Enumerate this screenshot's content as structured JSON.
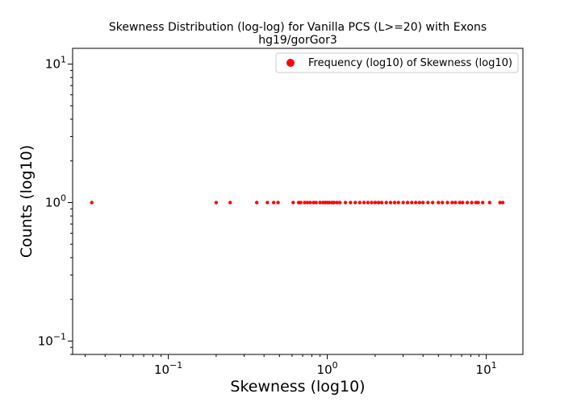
{
  "chart_data": {
    "type": "scatter",
    "title": "Skewness Distribution (log-log) for Vanilla PCS (L>=20) with Exons",
    "subtitle": "hg19/gorGor3",
    "xlabel": "Skewness (log10)",
    "ylabel": "Counts (log10)",
    "xscale": "log",
    "yscale": "log",
    "xlim": [
      0.025,
      17
    ],
    "ylim": [
      0.08,
      13
    ],
    "x_ticks": [
      {
        "value": 0.1,
        "base": "10",
        "exp": "−1"
      },
      {
        "value": 1,
        "base": "10",
        "exp": "0"
      },
      {
        "value": 10,
        "base": "10",
        "exp": "1"
      }
    ],
    "y_ticks": [
      {
        "value": 0.1,
        "base": "10",
        "exp": "−1"
      },
      {
        "value": 1,
        "base": "10",
        "exp": "0"
      },
      {
        "value": 10,
        "base": "10",
        "exp": "1"
      }
    ],
    "legend_placement": "top-right",
    "series": [
      {
        "name": "Frequency (log10) of Skewness (log10)",
        "color": "#ff0000",
        "points": [
          {
            "x": 0.033,
            "y": 1
          },
          {
            "x": 0.2,
            "y": 1
          },
          {
            "x": 0.245,
            "y": 1
          },
          {
            "x": 0.36,
            "y": 1
          },
          {
            "x": 0.42,
            "y": 1
          },
          {
            "x": 0.46,
            "y": 1
          },
          {
            "x": 0.49,
            "y": 1
          },
          {
            "x": 0.61,
            "y": 1
          },
          {
            "x": 0.66,
            "y": 1
          },
          {
            "x": 0.68,
            "y": 1
          },
          {
            "x": 0.72,
            "y": 1
          },
          {
            "x": 0.75,
            "y": 1
          },
          {
            "x": 0.78,
            "y": 1
          },
          {
            "x": 0.82,
            "y": 1
          },
          {
            "x": 0.85,
            "y": 1
          },
          {
            "x": 0.9,
            "y": 1
          },
          {
            "x": 0.94,
            "y": 1
          },
          {
            "x": 0.97,
            "y": 1
          },
          {
            "x": 1.0,
            "y": 1
          },
          {
            "x": 1.03,
            "y": 1
          },
          {
            "x": 1.07,
            "y": 1
          },
          {
            "x": 1.1,
            "y": 1
          },
          {
            "x": 1.15,
            "y": 1
          },
          {
            "x": 1.2,
            "y": 1
          },
          {
            "x": 1.3,
            "y": 1
          },
          {
            "x": 1.4,
            "y": 1
          },
          {
            "x": 1.5,
            "y": 1
          },
          {
            "x": 1.6,
            "y": 1
          },
          {
            "x": 1.7,
            "y": 1
          },
          {
            "x": 1.8,
            "y": 1
          },
          {
            "x": 1.9,
            "y": 1
          },
          {
            "x": 2.0,
            "y": 1
          },
          {
            "x": 2.1,
            "y": 1
          },
          {
            "x": 2.2,
            "y": 1
          },
          {
            "x": 2.35,
            "y": 1
          },
          {
            "x": 2.5,
            "y": 1
          },
          {
            "x": 2.65,
            "y": 1
          },
          {
            "x": 2.8,
            "y": 1
          },
          {
            "x": 3.0,
            "y": 1
          },
          {
            "x": 3.2,
            "y": 1
          },
          {
            "x": 3.4,
            "y": 1
          },
          {
            "x": 3.6,
            "y": 1
          },
          {
            "x": 3.8,
            "y": 1
          },
          {
            "x": 4.0,
            "y": 1
          },
          {
            "x": 4.3,
            "y": 1
          },
          {
            "x": 4.6,
            "y": 1
          },
          {
            "x": 5.0,
            "y": 1
          },
          {
            "x": 5.3,
            "y": 1
          },
          {
            "x": 5.7,
            "y": 1
          },
          {
            "x": 6.1,
            "y": 1
          },
          {
            "x": 6.4,
            "y": 1
          },
          {
            "x": 6.8,
            "y": 1
          },
          {
            "x": 7.1,
            "y": 1
          },
          {
            "x": 7.6,
            "y": 1
          },
          {
            "x": 8.1,
            "y": 1
          },
          {
            "x": 8.6,
            "y": 1
          },
          {
            "x": 8.9,
            "y": 1
          },
          {
            "x": 9.5,
            "y": 1
          },
          {
            "x": 10.5,
            "y": 1
          },
          {
            "x": 12.2,
            "y": 1
          },
          {
            "x": 12.7,
            "y": 1
          }
        ]
      }
    ]
  }
}
